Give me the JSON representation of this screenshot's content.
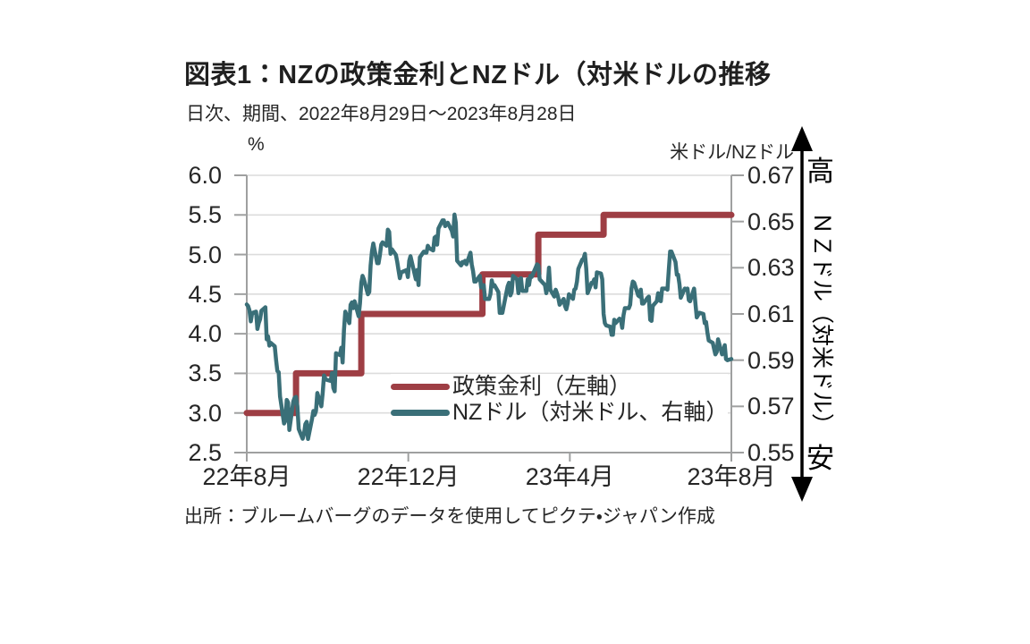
{
  "header": {
    "title": "図表1：NZの政策金利とNZドル（対米ドルの推移",
    "subtitle": "日次、期間、2022年8月29日～2023年8月28日"
  },
  "source": "出所：ブルームバーグのデータを使用してピクテ・ジャパン作成",
  "annotation": {
    "high": "高",
    "vertical_label": "ＮＺドル（対米ドル）",
    "low": "安"
  },
  "colors": {
    "policy_rate": "#9E3E44",
    "nzd": "#3A6F78",
    "grid": "#DCDCDC",
    "axis": "#9FA0A0",
    "arrow": "#000000",
    "text": "#262626"
  },
  "chart_data": {
    "type": "line",
    "title": "NZの政策金利とNZドル（対米ドル）の推移",
    "frequency": "日次",
    "period": "2022年8月29日～2023年8月28日",
    "x_days_from": "2022-08-29",
    "x_range_days": [
      0,
      364
    ],
    "x_tick_labels": [
      "22年8月",
      "22年12月",
      "23年4月",
      "23年8月"
    ],
    "left_axis": {
      "unit": "%",
      "min": 2.5,
      "max": 6.0,
      "tick_step": 0.5,
      "tick_labels": [
        "6.0",
        "5.5",
        "5.0",
        "4.5",
        "4.0",
        "3.5",
        "3.0",
        "2.5"
      ]
    },
    "right_axis": {
      "unit": "米ドル/NZドル",
      "min": 0.55,
      "max": 0.67,
      "tick_step": 0.02,
      "tick_labels": [
        "0.67",
        "0.65",
        "0.63",
        "0.61",
        "0.59",
        "0.57",
        "0.55"
      ]
    },
    "grid": "horizontal",
    "legend": [
      {
        "label": "政策金利（左軸）",
        "color_key": "policy_rate"
      },
      {
        "label": "NZドル（対米ドル、右軸）",
        "color_key": "nzd"
      }
    ],
    "series": [
      {
        "name": "政策金利（左軸）",
        "axis": "left",
        "line_type": "step",
        "points": [
          [
            0,
            3.0
          ],
          [
            37,
            3.5
          ],
          [
            86,
            4.25
          ],
          [
            177,
            4.75
          ],
          [
            219,
            5.25
          ],
          [
            268,
            5.5
          ],
          [
            364,
            5.5
          ]
        ]
      },
      {
        "name": "NZドル（対米ドル、右軸）",
        "axis": "right",
        "line_type": "line",
        "points": [
          [
            0,
            0.6141
          ],
          [
            1,
            0.6134
          ],
          [
            2,
            0.6116
          ],
          [
            3,
            0.6068
          ],
          [
            4,
            0.6104
          ],
          [
            7,
            0.611
          ],
          [
            8,
            0.6035
          ],
          [
            9,
            0.6061
          ],
          [
            10,
            0.6077
          ],
          [
            11,
            0.6114
          ],
          [
            14,
            0.6129
          ],
          [
            15,
            0.599
          ],
          [
            16,
            0.6003
          ],
          [
            17,
            0.5963
          ],
          [
            18,
            0.5975
          ],
          [
            21,
            0.596
          ],
          [
            22,
            0.59
          ],
          [
            23,
            0.5853
          ],
          [
            24,
            0.5848
          ],
          [
            25,
            0.5743
          ],
          [
            28,
            0.5626
          ],
          [
            29,
            0.5638
          ],
          [
            30,
            0.5728
          ],
          [
            31,
            0.5717
          ],
          [
            32,
            0.5598
          ],
          [
            35,
            0.5722
          ],
          [
            36,
            0.5738
          ],
          [
            37,
            0.5741
          ],
          [
            38,
            0.57
          ],
          [
            39,
            0.5602
          ],
          [
            42,
            0.556
          ],
          [
            43,
            0.558
          ],
          [
            44,
            0.5623
          ],
          [
            45,
            0.5633
          ],
          [
            46,
            0.5559
          ],
          [
            49,
            0.5646
          ],
          [
            50,
            0.568
          ],
          [
            51,
            0.5663
          ],
          [
            52,
            0.568
          ],
          [
            53,
            0.5758
          ],
          [
            56,
            0.57
          ],
          [
            57,
            0.5757
          ],
          [
            58,
            0.5834
          ],
          [
            59,
            0.582
          ],
          [
            60,
            0.5815
          ],
          [
            63,
            0.581
          ],
          [
            64,
            0.5844
          ],
          [
            65,
            0.578
          ],
          [
            66,
            0.5765
          ],
          [
            67,
            0.593
          ],
          [
            70,
            0.5922
          ],
          [
            71,
            0.5954
          ],
          [
            72,
            0.589
          ],
          [
            73,
            0.603
          ],
          [
            74,
            0.611
          ],
          [
            77,
            0.606
          ],
          [
            78,
            0.614
          ],
          [
            79,
            0.615
          ],
          [
            80,
            0.6125
          ],
          [
            81,
            0.6155
          ],
          [
            84,
            0.609
          ],
          [
            85,
            0.6145
          ],
          [
            86,
            0.6235
          ],
          [
            87,
            0.6265
          ],
          [
            88,
            0.625
          ],
          [
            91,
            0.6185
          ],
          [
            92,
            0.6195
          ],
          [
            93,
            0.631
          ],
          [
            94,
            0.637
          ],
          [
            95,
            0.6405
          ],
          [
            98,
            0.632
          ],
          [
            99,
            0.632
          ],
          [
            100,
            0.6355
          ],
          [
            101,
            0.64
          ],
          [
            102,
            0.641
          ],
          [
            105,
            0.6395
          ],
          [
            106,
            0.6465
          ],
          [
            107,
            0.6455
          ],
          [
            108,
            0.636
          ],
          [
            109,
            0.638
          ],
          [
            112,
            0.6355
          ],
          [
            113,
            0.6325
          ],
          [
            114,
            0.629
          ],
          [
            115,
            0.6255
          ],
          [
            116,
            0.628
          ],
          [
            120,
            0.629
          ],
          [
            121,
            0.626
          ],
          [
            122,
            0.633
          ],
          [
            123,
            0.635
          ],
          [
            127,
            0.625
          ],
          [
            128,
            0.629
          ],
          [
            129,
            0.6225
          ],
          [
            130,
            0.6345
          ],
          [
            133,
            0.637
          ],
          [
            134,
            0.6365
          ],
          [
            135,
            0.6365
          ],
          [
            136,
            0.6395
          ],
          [
            137,
            0.6385
          ],
          [
            140,
            0.6375
          ],
          [
            141,
            0.643
          ],
          [
            142,
            0.6435
          ],
          [
            143,
            0.64
          ],
          [
            144,
            0.647
          ],
          [
            147,
            0.6505
          ],
          [
            148,
            0.6505
          ],
          [
            149,
            0.648
          ],
          [
            150,
            0.649
          ],
          [
            151,
            0.6495
          ],
          [
            154,
            0.646
          ],
          [
            155,
            0.6435
          ],
          [
            156,
            0.653
          ],
          [
            157,
            0.6495
          ],
          [
            158,
            0.633
          ],
          [
            161,
            0.631
          ],
          [
            162,
            0.6325
          ],
          [
            163,
            0.632
          ],
          [
            164,
            0.633
          ],
          [
            165,
            0.6315
          ],
          [
            168,
            0.6365
          ],
          [
            169,
            0.6315
          ],
          [
            170,
            0.6285
          ],
          [
            171,
            0.624
          ],
          [
            172,
            0.624
          ],
          [
            175,
            0.6265
          ],
          [
            176,
            0.6215
          ],
          [
            177,
            0.622
          ],
          [
            178,
            0.6225
          ],
          [
            179,
            0.6165
          ],
          [
            182,
            0.6165
          ],
          [
            183,
            0.6185
          ],
          [
            184,
            0.6245
          ],
          [
            185,
            0.622
          ],
          [
            186,
            0.6225
          ],
          [
            189,
            0.6195
          ],
          [
            190,
            0.6105
          ],
          [
            191,
            0.6105
          ],
          [
            192,
            0.6105
          ],
          [
            193,
            0.6135
          ],
          [
            196,
            0.622
          ],
          [
            197,
            0.6235
          ],
          [
            198,
            0.618
          ],
          [
            199,
            0.6195
          ],
          [
            200,
            0.6265
          ],
          [
            203,
            0.625
          ],
          [
            204,
            0.619
          ],
          [
            205,
            0.625
          ],
          [
            206,
            0.6255
          ],
          [
            207,
            0.62
          ],
          [
            210,
            0.62
          ],
          [
            211,
            0.625
          ],
          [
            212,
            0.6225
          ],
          [
            213,
            0.6265
          ],
          [
            214,
            0.626
          ],
          [
            217,
            0.63
          ],
          [
            218,
            0.6315
          ],
          [
            219,
            0.631
          ],
          [
            220,
            0.625
          ],
          [
            224,
            0.6225
          ],
          [
            225,
            0.619
          ],
          [
            226,
            0.6215
          ],
          [
            227,
            0.63
          ],
          [
            228,
            0.6205
          ],
          [
            231,
            0.6175
          ],
          [
            232,
            0.6205
          ],
          [
            233,
            0.619
          ],
          [
            234,
            0.617
          ],
          [
            235,
            0.614
          ],
          [
            238,
            0.6165
          ],
          [
            239,
            0.6135
          ],
          [
            240,
            0.612
          ],
          [
            241,
            0.6145
          ],
          [
            242,
            0.6185
          ],
          [
            245,
            0.6165
          ],
          [
            246,
            0.6205
          ],
          [
            247,
            0.621
          ],
          [
            248,
            0.624
          ],
          [
            249,
            0.6295
          ],
          [
            252,
            0.6335
          ],
          [
            253,
            0.634
          ],
          [
            254,
            0.636
          ],
          [
            255,
            0.6295
          ],
          [
            256,
            0.619
          ],
          [
            259,
            0.6235
          ],
          [
            260,
            0.6235
          ],
          [
            261,
            0.625
          ],
          [
            262,
            0.6215
          ],
          [
            263,
            0.628
          ],
          [
            266,
            0.6275
          ],
          [
            267,
            0.625
          ],
          [
            268,
            0.61
          ],
          [
            269,
            0.606
          ],
          [
            270,
            0.605
          ],
          [
            273,
            0.6045
          ],
          [
            274,
            0.601
          ],
          [
            275,
            0.601
          ],
          [
            276,
            0.6075
          ],
          [
            277,
            0.606
          ],
          [
            280,
            0.608
          ],
          [
            281,
            0.6075
          ],
          [
            282,
            0.604
          ],
          [
            283,
            0.6095
          ],
          [
            284,
            0.6125
          ],
          [
            287,
            0.6125
          ],
          [
            288,
            0.614
          ],
          [
            289,
            0.621
          ],
          [
            290,
            0.624
          ],
          [
            291,
            0.6235
          ],
          [
            294,
            0.618
          ],
          [
            295,
            0.6175
          ],
          [
            296,
            0.6205
          ],
          [
            297,
            0.6145
          ],
          [
            298,
            0.6145
          ],
          [
            301,
            0.617
          ],
          [
            302,
            0.6175
          ],
          [
            303,
            0.6075
          ],
          [
            304,
            0.607
          ],
          [
            305,
            0.6135
          ],
          [
            308,
            0.6155
          ],
          [
            309,
            0.619
          ],
          [
            310,
            0.616
          ],
          [
            311,
            0.6155
          ],
          [
            312,
            0.621
          ],
          [
            315,
            0.621
          ],
          [
            316,
            0.6205
          ],
          [
            317,
            0.629
          ],
          [
            318,
            0.637
          ],
          [
            319,
            0.637
          ],
          [
            322,
            0.6325
          ],
          [
            323,
            0.627
          ],
          [
            324,
            0.627
          ],
          [
            325,
            0.623
          ],
          [
            326,
            0.617
          ],
          [
            329,
            0.621
          ],
          [
            330,
            0.6205
          ],
          [
            331,
            0.621
          ],
          [
            332,
            0.616
          ],
          [
            333,
            0.6155
          ],
          [
            336,
            0.621
          ],
          [
            337,
            0.6145
          ],
          [
            338,
            0.6085
          ],
          [
            339,
            0.6095
          ],
          [
            340,
            0.6105
          ],
          [
            343,
            0.61
          ],
          [
            344,
            0.606
          ],
          [
            345,
            0.6065
          ],
          [
            346,
            0.602
          ],
          [
            347,
            0.5985
          ],
          [
            350,
            0.5975
          ],
          [
            351,
            0.595
          ],
          [
            352,
            0.5925
          ],
          [
            353,
            0.5935
          ],
          [
            354,
            0.599
          ],
          [
            357,
            0.5925
          ],
          [
            358,
            0.594
          ],
          [
            359,
            0.5965
          ],
          [
            360,
            0.5905
          ],
          [
            361,
            0.59
          ],
          [
            364,
            0.5905
          ]
        ]
      }
    ]
  }
}
